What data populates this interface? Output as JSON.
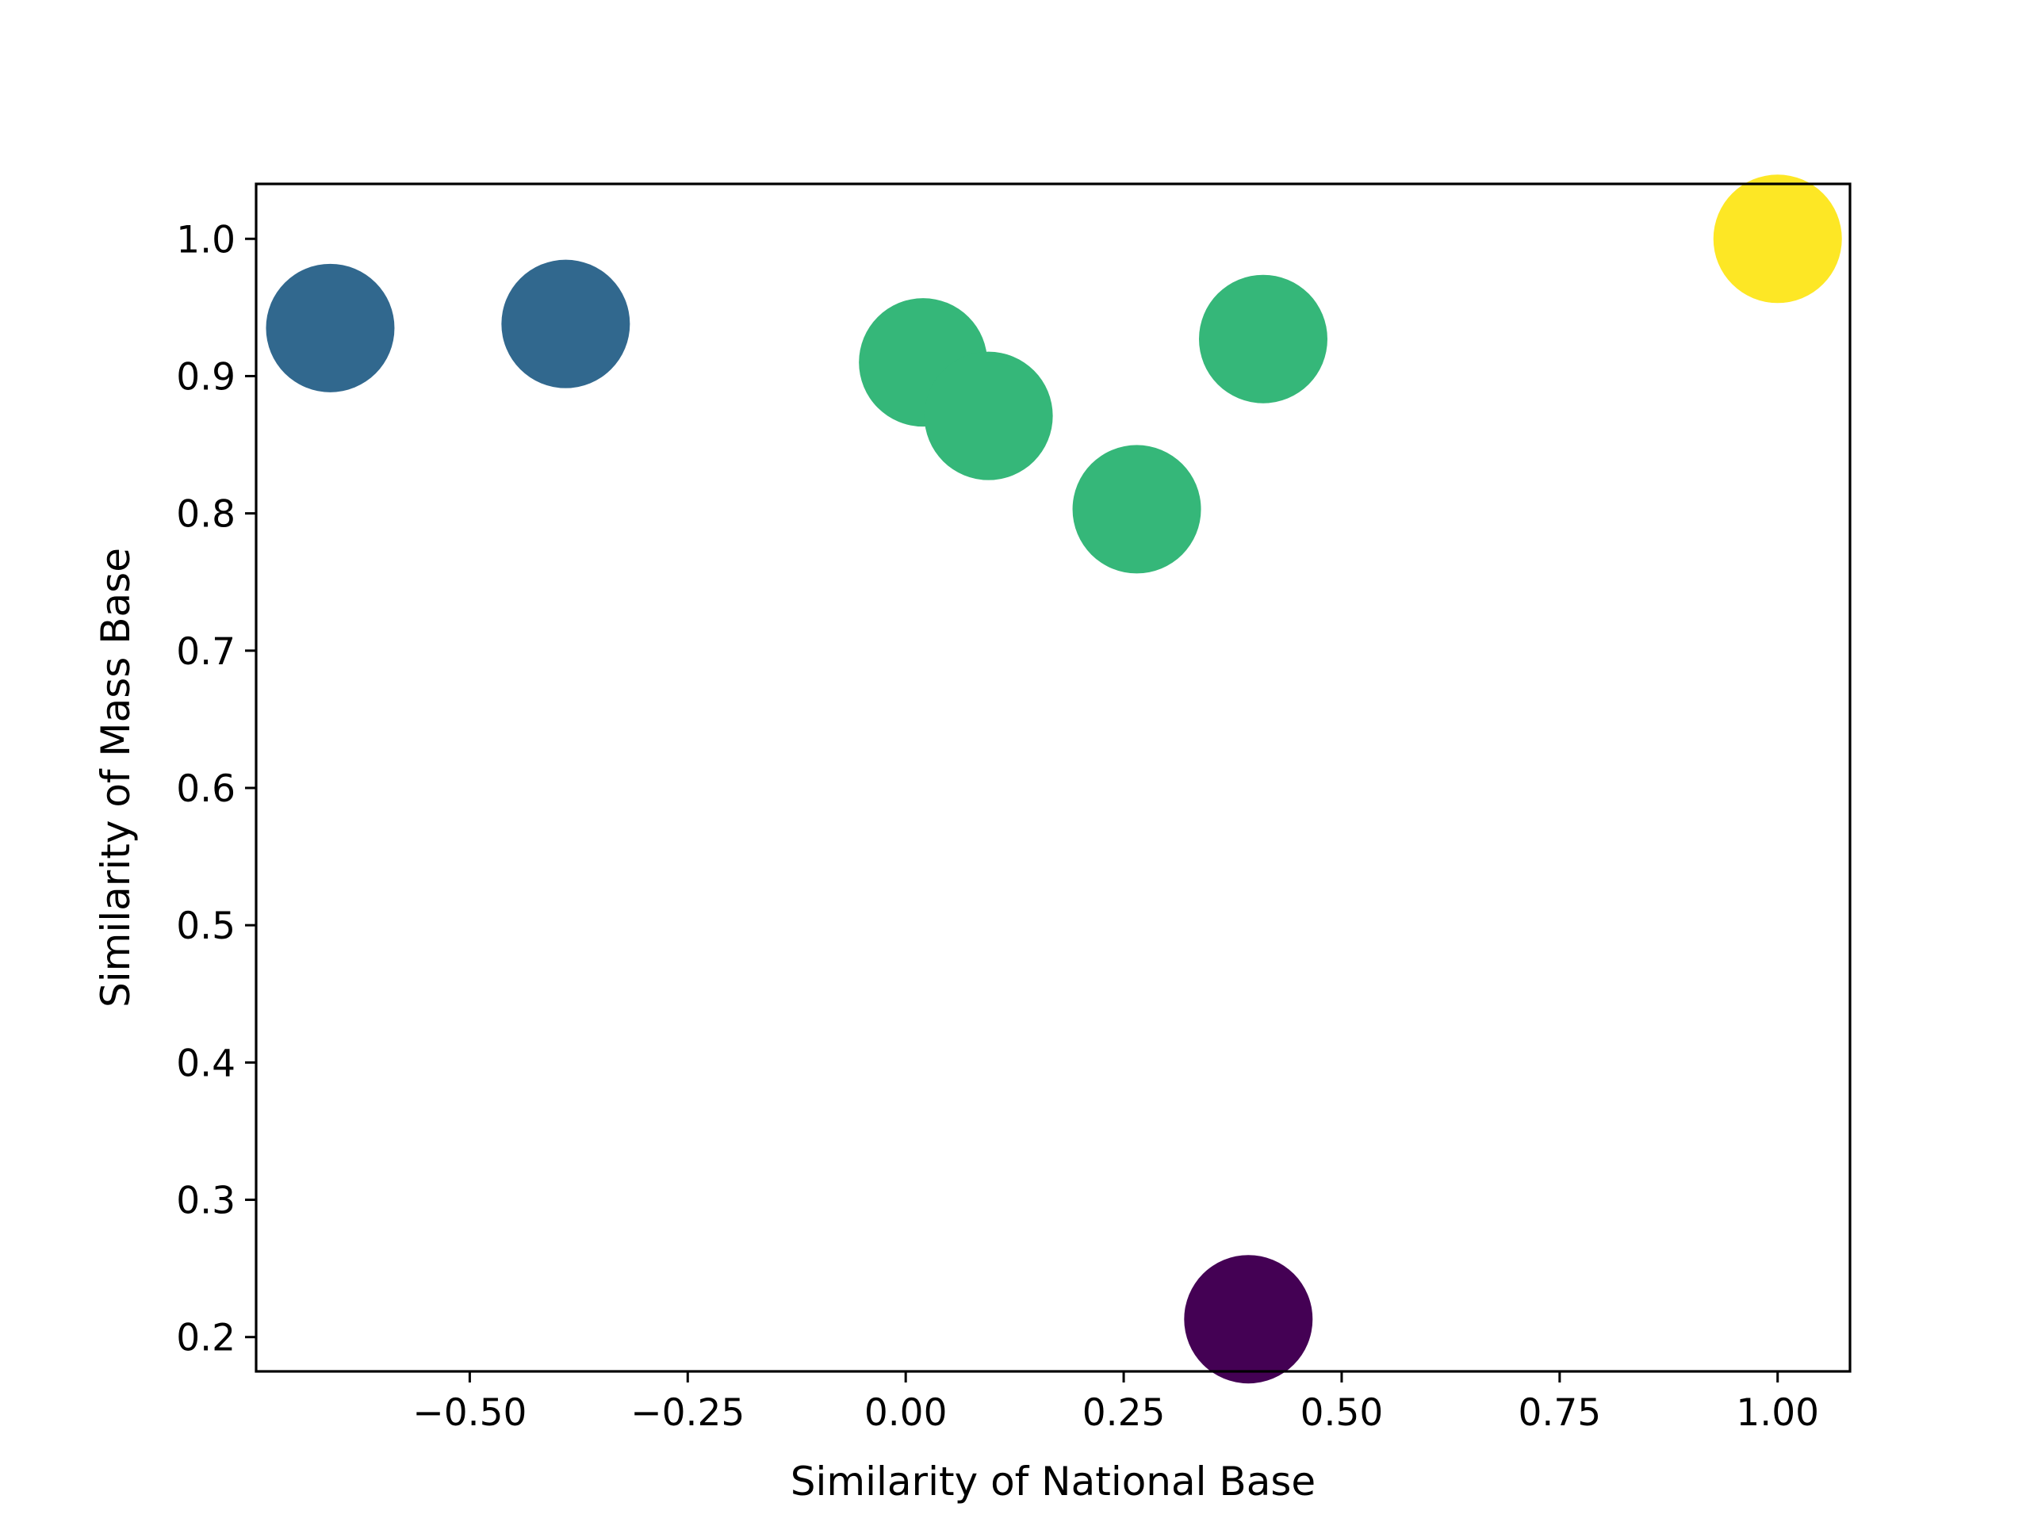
{
  "chart_data": {
    "type": "scatter",
    "xlabel": "Similarity of National Base",
    "ylabel": "Similarity of Mass Base",
    "xlim": [
      -0.745,
      1.083
    ],
    "ylim": [
      0.175,
      1.04
    ],
    "x_ticks": [
      -0.5,
      -0.25,
      0.0,
      0.25,
      0.5,
      0.75,
      1.0
    ],
    "x_tick_labels": [
      "−0.50",
      "−0.25",
      "0.00",
      "0.25",
      "0.50",
      "0.75",
      "1.00"
    ],
    "y_ticks": [
      0.2,
      0.3,
      0.4,
      0.5,
      0.6,
      0.7,
      0.8,
      0.9,
      1.0
    ],
    "y_tick_labels": [
      "0.2",
      "0.3",
      "0.4",
      "0.5",
      "0.6",
      "0.7",
      "0.8",
      "0.9",
      "1.0"
    ],
    "grid": false,
    "points": [
      {
        "x": -0.66,
        "y": 0.935,
        "color": "#31688e"
      },
      {
        "x": -0.39,
        "y": 0.938,
        "color": "#31688e"
      },
      {
        "x": 0.02,
        "y": 0.91,
        "color": "#35b779"
      },
      {
        "x": 0.095,
        "y": 0.871,
        "color": "#35b779"
      },
      {
        "x": 0.265,
        "y": 0.803,
        "color": "#35b779"
      },
      {
        "x": 0.41,
        "y": 0.927,
        "color": "#35b779"
      },
      {
        "x": 0.393,
        "y": 0.213,
        "color": "#440154"
      },
      {
        "x": 1.0,
        "y": 1.0,
        "color": "#fde725"
      }
    ]
  }
}
